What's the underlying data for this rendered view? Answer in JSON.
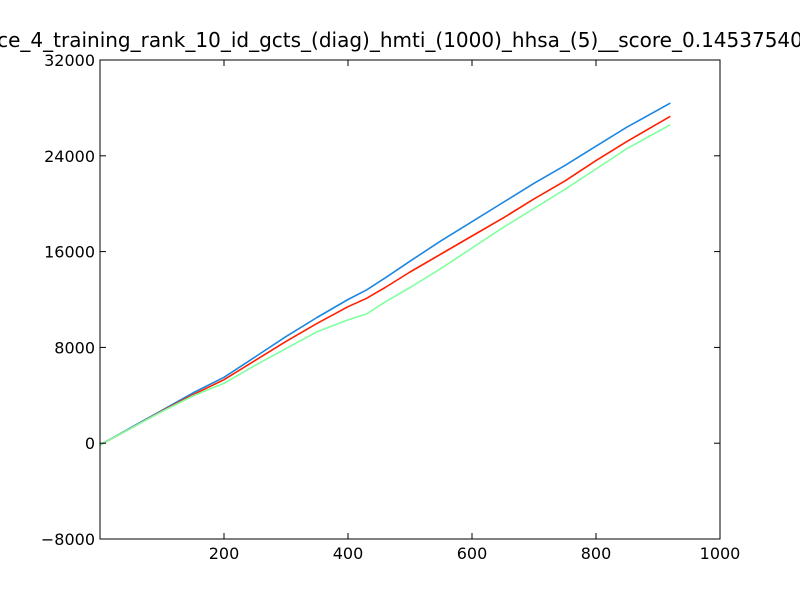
{
  "chart_data": {
    "type": "line",
    "title": "ce_4_training_rank_10_id_gcts_(diag)_hmti_(1000)_hhsa_(5)__score_0.14537540",
    "xlabel": "",
    "ylabel": "",
    "xlim": [
      0,
      1000
    ],
    "ylim": [
      -8000,
      32000
    ],
    "xticks": [
      200,
      400,
      600,
      800,
      1000
    ],
    "yticks": [
      -8000,
      0,
      8000,
      16000,
      24000,
      32000
    ],
    "xtick_labels": [
      "200",
      "400",
      "600",
      "800",
      "1000"
    ],
    "ytick_labels": [
      "−8000",
      "0",
      "8000",
      "16000",
      "24000",
      "32000"
    ],
    "grid": false,
    "series": [
      {
        "color": "#1c86e0",
        "x": [
          0,
          50,
          100,
          150,
          200,
          250,
          300,
          350,
          400,
          430,
          460,
          500,
          550,
          600,
          650,
          700,
          750,
          800,
          850,
          920
        ],
        "y": [
          -150,
          1300,
          2750,
          4200,
          5500,
          7200,
          8900,
          10500,
          12000,
          12800,
          13800,
          15200,
          16900,
          18500,
          20100,
          21700,
          23200,
          24800,
          26400,
          28400
        ]
      },
      {
        "color": "#ff2000",
        "x": [
          0,
          50,
          100,
          150,
          200,
          250,
          300,
          350,
          400,
          430,
          460,
          500,
          550,
          600,
          650,
          700,
          750,
          800,
          850,
          920
        ],
        "y": [
          -150,
          1250,
          2700,
          4050,
          5300,
          6900,
          8500,
          10000,
          11400,
          12100,
          13000,
          14300,
          15800,
          17300,
          18800,
          20400,
          21900,
          23600,
          25200,
          27300
        ]
      },
      {
        "color": "#80ffa0",
        "x": [
          0,
          50,
          100,
          150,
          200,
          250,
          300,
          350,
          400,
          430,
          460,
          500,
          550,
          600,
          650,
          700,
          750,
          800,
          850,
          920
        ],
        "y": [
          -150,
          1250,
          2650,
          3950,
          5000,
          6500,
          7900,
          9300,
          10300,
          10800,
          11800,
          13000,
          14600,
          16300,
          18000,
          19600,
          21200,
          22900,
          24600,
          26600
        ]
      }
    ]
  }
}
